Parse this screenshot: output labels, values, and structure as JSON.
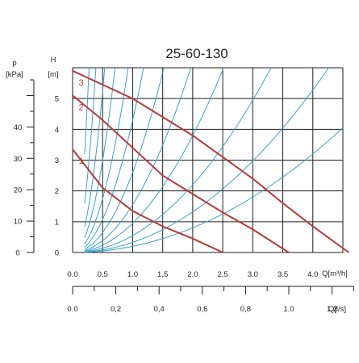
{
  "chart_data": {
    "type": "line",
    "title": "25-60-130",
    "x_axis_flow": {
      "label": "Q[m³/h]",
      "ticks": [
        "0.0",
        "0,5",
        "1.0",
        "1,5",
        "2.0",
        "2,5",
        "3.0",
        "3.5",
        "4.0"
      ],
      "range": [
        0,
        4.5
      ]
    },
    "x_axis_flow_ls": {
      "label": "Q[l/s]",
      "ticks": [
        "0.0",
        "0,2",
        "0,4",
        "0,6",
        "0,8",
        "1.0",
        "1.2"
      ],
      "tick_values": [
        0,
        0.2,
        0.4,
        0.6,
        0.8,
        1.0,
        1.2
      ]
    },
    "y_axis_head": {
      "label": "H",
      "unit": "[m]",
      "ticks": [
        "0",
        "1",
        "2",
        "3",
        "4",
        "5"
      ],
      "range": [
        0,
        6
      ]
    },
    "y_axis_pressure": {
      "label": "p",
      "unit": "[kPa]",
      "ticks": [
        "0",
        "10",
        "20",
        "30",
        "40"
      ],
      "tick_values": [
        0,
        10,
        20,
        30,
        40
      ]
    },
    "grid": true,
    "series": [
      {
        "name": "1",
        "x": [
          0,
          0.5,
          1.0,
          1.5,
          2.0,
          2.5
        ],
        "y": [
          3.35,
          2.1,
          1.35,
          0.85,
          0.45,
          0
        ]
      },
      {
        "name": "2",
        "x": [
          0,
          0.5,
          1.0,
          1.5,
          2.0,
          2.5,
          3.0,
          3.6
        ],
        "y": [
          5.1,
          4.3,
          3.4,
          2.5,
          1.9,
          1.3,
          0.75,
          0
        ]
      },
      {
        "name": "3",
        "x": [
          0,
          0.5,
          1.0,
          1.5,
          2.0,
          2.5,
          3.0,
          3.5,
          4.0,
          4.6
        ],
        "y": [
          5.9,
          5.45,
          5.0,
          4.4,
          3.8,
          3.1,
          2.4,
          1.6,
          0.85,
          0
        ]
      }
    ],
    "system_curve_coefficients": [
      80,
      40,
      21,
      12,
      7,
      4.3,
      2.6,
      1.55,
      0.95,
      0.55,
      0.33,
      0.2
    ],
    "colors": {
      "pump_curve": "#b83a3a",
      "system_curve": "#3aa3c6",
      "grid": "#1e1e1e"
    }
  }
}
